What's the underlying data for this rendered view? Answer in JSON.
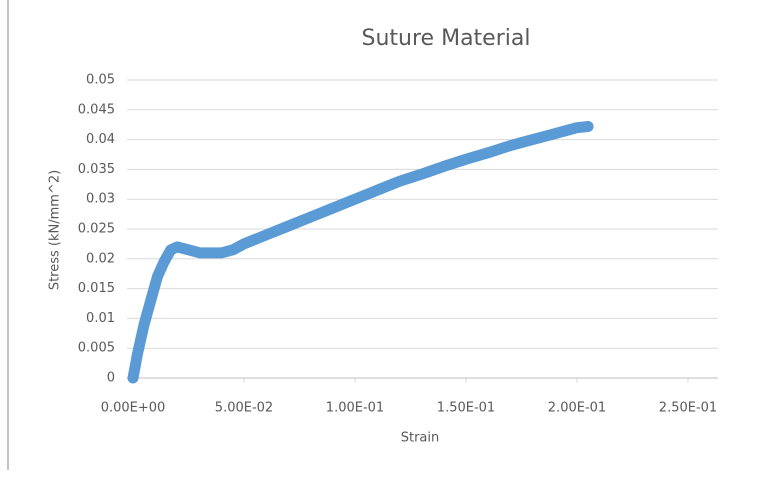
{
  "chart_data": {
    "type": "scatter",
    "title": "Suture Material",
    "x_label": "Strain",
    "y_label": "Stress (kN/mm^2)",
    "series": [
      {
        "color": "#5b9bd5",
        "x": [
          0,
          0.002,
          0.005,
          0.008,
          0.011,
          0.014,
          0.017,
          0.02,
          0.025,
          0.03,
          0.04,
          0.045,
          0.05,
          0.06,
          0.07,
          0.08,
          0.09,
          0.1,
          0.11,
          0.12,
          0.13,
          0.14,
          0.15,
          0.16,
          0.17,
          0.18,
          0.19,
          0.2,
          0.205
        ],
        "values": [
          0,
          0.004,
          0.009,
          0.013,
          0.017,
          0.0195,
          0.0215,
          0.022,
          0.0215,
          0.021,
          0.021,
          0.0215,
          0.0225,
          0.024,
          0.0255,
          0.027,
          0.0285,
          0.03,
          0.0315,
          0.033,
          0.0342,
          0.0355,
          0.0367,
          0.0378,
          0.039,
          0.04,
          0.041,
          0.042,
          0.0422
        ]
      }
    ],
    "xlim": [
      0,
      0.25
    ],
    "xticks": [
      {
        "value": 0,
        "label": "0.00E+00"
      },
      {
        "value": 0.05,
        "label": "5.00E-02"
      },
      {
        "value": 0.1,
        "label": "1.00E-01"
      },
      {
        "value": 0.15,
        "label": "1.50E-01"
      },
      {
        "value": 0.2,
        "label": "2.00E-01"
      },
      {
        "value": 0.25,
        "label": "2.50E-01"
      }
    ],
    "ylim": [
      0,
      0.05
    ],
    "yticks": [
      0,
      0.005,
      0.01,
      0.015,
      0.02,
      0.025,
      0.03,
      0.035,
      0.04,
      0.045,
      0.05
    ],
    "grid": true
  }
}
